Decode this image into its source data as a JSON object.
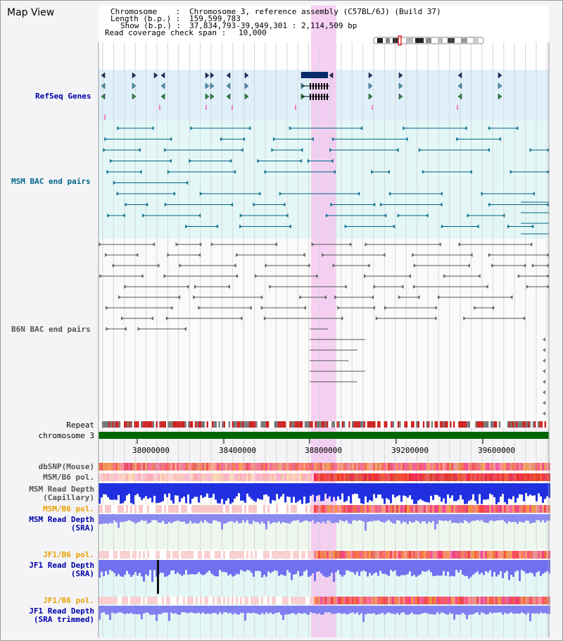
{
  "window": {
    "title": "Map View"
  },
  "header": {
    "chromosome_label": "Chromosome    :",
    "chromosome_value": "Chromosome 3, reference assembly (C57BL/6J) (Build 37)",
    "length_label": "Length (b.p.) :",
    "length_value": "159,599,783",
    "show_label": "Show (b.p.) :",
    "show_value": "37,834,793-39,949,301 : 2,114,509 bp",
    "span_label": "Read coverage check span :",
    "span_value": "10,000"
  },
  "tracks": {
    "refseq": "RefSeq Genes",
    "msm_bac": "MSM BAC end pairs",
    "b6n_bac": "B6N BAC end pairs",
    "repeat": "Repeat",
    "chromosome": "chromosome 3",
    "dbsnp": "dbSNP(Mouse)",
    "msm_b6_pol_1": "MSM/B6 pol.",
    "msm_read_depth_cap_1": "MSM Read Depth",
    "msm_read_depth_cap_2": "(Capillary)",
    "msm_b6_pol_2": "MSM/B6 pol.",
    "msm_read_depth_sra_1": "MSM Read Depth",
    "msm_read_depth_sra_2": "(SRA)",
    "jf1_b6_pol_1": "JF1/B6 pol.",
    "jf1_read_depth_sra_1": "JF1 Read Depth",
    "jf1_read_depth_sra_2": "(SRA)",
    "jf1_b6_pol_2": "JF1/B6 pol.",
    "jf1_read_depth_trim_1": "JF1 Read Depth",
    "jf1_read_depth_trim_2": "(SRA trimmed)"
  },
  "axis": {
    "ticks": [
      "38000000",
      "38400000",
      "38800000",
      "39200000",
      "39600000"
    ]
  },
  "colors": {
    "refseq": "#0000aa",
    "msm": "#006688",
    "b6n": "#555555",
    "orange": "#e8a000",
    "highlight": "#f5c8f0",
    "chromosome_bar": "#006600"
  }
}
